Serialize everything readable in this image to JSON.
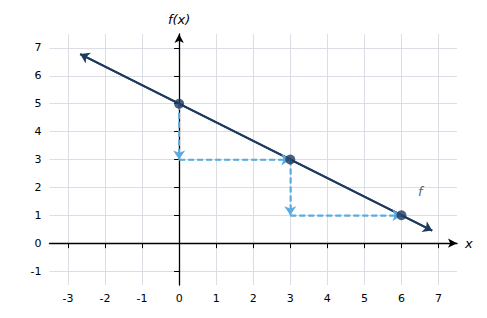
{
  "chart_data": {
    "type": "line",
    "xlabel": "x",
    "ylabel": "f(x)",
    "xlim": [
      -3.5,
      7.5
    ],
    "ylim": [
      -1.5,
      7.5
    ],
    "xticks": [
      -3,
      -2,
      -1,
      0,
      1,
      2,
      3,
      4,
      5,
      6,
      7
    ],
    "yticks": [
      -1,
      0,
      1,
      2,
      3,
      4,
      5,
      6,
      7
    ],
    "grid": true,
    "series": [
      {
        "type": "line",
        "color": "#1e3a5f",
        "line_style": "solid",
        "x": [
          -2.67,
          6.83
        ],
        "values": [
          6.78,
          0.45
        ]
      },
      {
        "type": "scatter",
        "color": "#1e3a5f",
        "marker": "circle",
        "x": [
          0,
          3,
          6
        ],
        "values": [
          5,
          3,
          1
        ]
      },
      {
        "type": "arrow",
        "color": "#5aace0",
        "line_style": "dashed",
        "x": [
          0,
          0
        ],
        "values": [
          5,
          3
        ]
      },
      {
        "type": "arrow",
        "color": "#5aace0",
        "line_style": "dashed",
        "x": [
          3,
          3
        ],
        "values": [
          3,
          1
        ]
      },
      {
        "type": "arrow",
        "color": "#5aace0",
        "line_style": "dashed",
        "x": [
          0,
          3
        ],
        "values": [
          3,
          3
        ]
      },
      {
        "type": "arrow",
        "color": "#5aace0",
        "line_style": "dashed",
        "x": [
          3,
          6
        ],
        "values": [
          1,
          1
        ]
      }
    ],
    "annotations": [
      {
        "text": "f",
        "x": 6.45,
        "y": 1.5,
        "color": "#1e3a5f"
      }
    ]
  }
}
